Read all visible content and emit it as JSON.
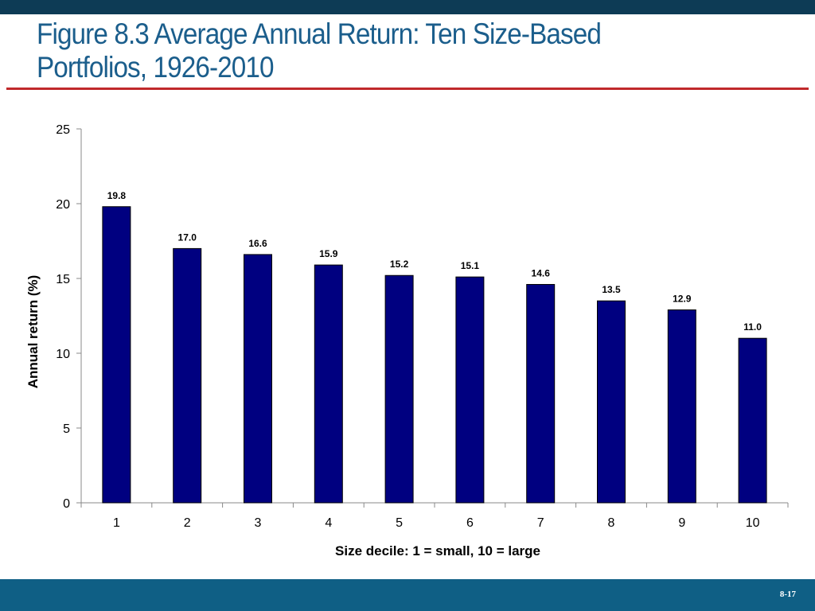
{
  "slide": {
    "title": "Figure 8.3 Average Annual Return: Ten Size-Based Portfolios, 1926-2010",
    "page_number": "8-17"
  },
  "colors": {
    "top_bar": "#0d3b55",
    "title": "#1b5e8c",
    "rule": "#c0292b",
    "bar_fill": "#000080",
    "bottom_bar": "#0f5f85"
  },
  "chart_data": {
    "type": "bar",
    "title": "",
    "xlabel": "Size decile: 1 = small, 10 = large",
    "ylabel": "Annual return (%)",
    "categories": [
      "1",
      "2",
      "3",
      "4",
      "5",
      "6",
      "7",
      "8",
      "9",
      "10"
    ],
    "values": [
      19.8,
      17.0,
      16.6,
      15.9,
      15.2,
      15.1,
      14.6,
      13.5,
      12.9,
      11.0
    ],
    "data_labels": [
      "19.8",
      "17.0",
      "16.6",
      "15.9",
      "15.2",
      "15.1",
      "14.6",
      "13.5",
      "12.9",
      "11.0"
    ],
    "ylim": [
      0,
      25
    ],
    "yticks": [
      0,
      5,
      10,
      15,
      20,
      25
    ],
    "grid": false,
    "legend": "none"
  }
}
